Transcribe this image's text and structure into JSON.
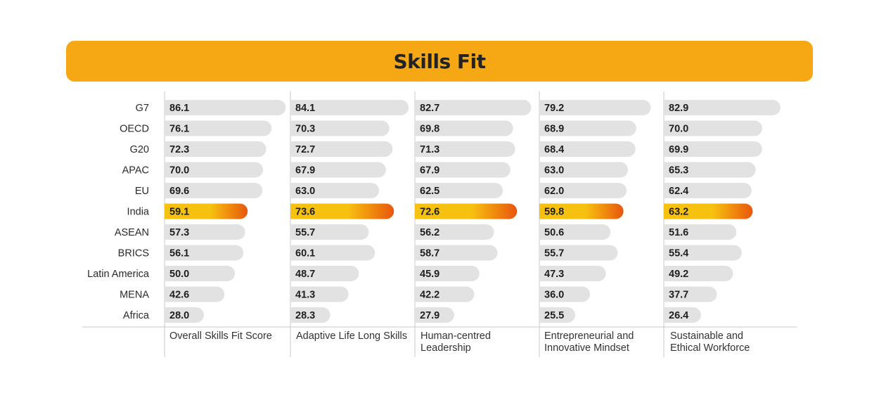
{
  "header": {
    "title": "Skills Fit"
  },
  "colors": {
    "banner": "#f5a814",
    "bar_default": "#e3e2e2",
    "highlight_start": "#f7c20f",
    "highlight_end": "#e8560e",
    "divider": "#c8c8c8"
  },
  "chart_data": {
    "type": "bar",
    "orientation": "horizontal",
    "title": "Skills Fit",
    "categories": [
      "G7",
      "OECD",
      "G20",
      "APAC",
      "EU",
      "India",
      "ASEAN",
      "BRICS",
      "Latin America",
      "MENA",
      "Africa"
    ],
    "highlight_category": "India",
    "series": [
      {
        "name": "Overall Skills Fit Score",
        "values": [
          86.1,
          76.1,
          72.3,
          70.0,
          69.6,
          59.1,
          57.3,
          56.1,
          50.0,
          42.6,
          28.0
        ],
        "labels": [
          "86.1",
          "76.1",
          "72.3",
          "70.0",
          "69.6",
          "59.1",
          "57.3",
          "56.1",
          "50.0",
          "42.6",
          "28.0"
        ]
      },
      {
        "name": "Adaptive Life Long Skills",
        "values": [
          84.1,
          70.3,
          72.7,
          67.9,
          63.0,
          73.6,
          55.7,
          60.1,
          48.7,
          41.3,
          28.3
        ],
        "labels": [
          "84.1",
          "70.3",
          "72.7",
          "67.9",
          "63.0",
          "73.6",
          "55.7",
          "60.1",
          "48.7",
          "41.3",
          "28.3"
        ]
      },
      {
        "name": "Human-centred Leadership",
        "values": [
          82.7,
          69.8,
          71.3,
          67.9,
          62.5,
          72.6,
          56.2,
          58.7,
          45.9,
          42.2,
          27.9
        ],
        "labels": [
          "82.7",
          "69.8",
          "71.3",
          "67.9",
          "62.5",
          "72.6",
          "56.2",
          "58.7",
          "45.9",
          "42.2",
          "27.9"
        ]
      },
      {
        "name": "Entrepreneurial and Innovative Mindset",
        "values": [
          79.2,
          68.9,
          68.4,
          63.0,
          62.0,
          59.8,
          50.6,
          55.7,
          47.3,
          36.0,
          25.5
        ],
        "labels": [
          "79.2",
          "68.9",
          "68.4",
          "63.0",
          "62.0",
          "59.8",
          "50.6",
          "55.7",
          "47.3",
          "36.0",
          "25.5"
        ]
      },
      {
        "name": "Sustainable and Ethical Workforce",
        "values": [
          82.9,
          70.0,
          69.9,
          65.3,
          62.4,
          63.2,
          51.6,
          55.4,
          49.2,
          37.7,
          26.4
        ],
        "labels": [
          "82.9",
          "70.0",
          "69.9",
          "65.3",
          "62.4",
          "63.2",
          "51.6",
          "55.4",
          "49.2",
          "37.7",
          "26.4"
        ]
      }
    ],
    "column_footers": [
      [
        "Overall Skills Fit Score"
      ],
      [
        "Adaptive Life Long Skills"
      ],
      [
        "Human-centred",
        "Leadership"
      ],
      [
        "Entrepreneurial and",
        "Innovative Mindset"
      ],
      [
        "Sustainable and",
        "Ethical Workforce"
      ]
    ],
    "xlim": [
      0,
      100
    ],
    "grid": false,
    "legend": "none"
  }
}
